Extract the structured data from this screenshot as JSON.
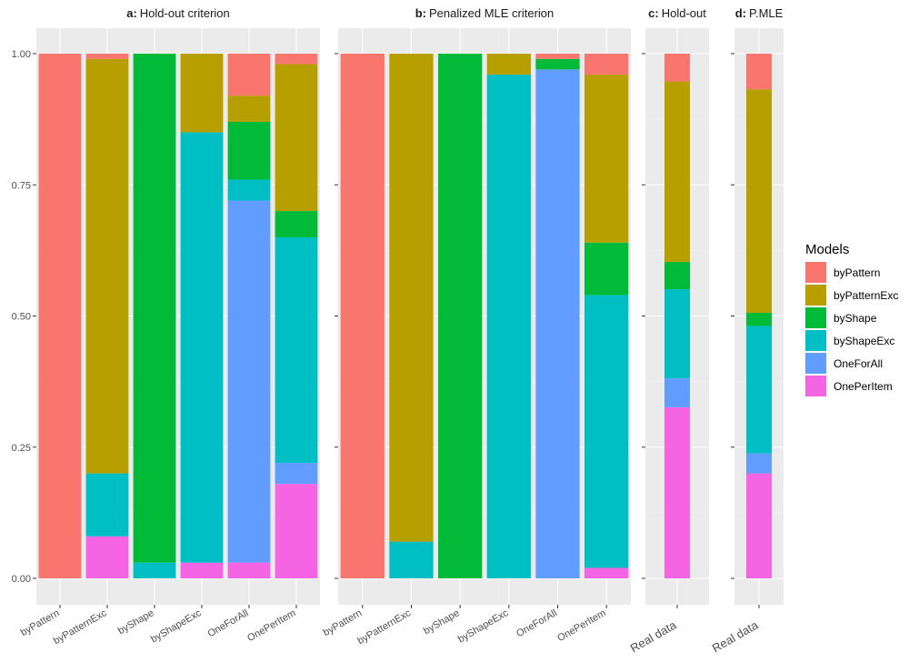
{
  "chart_data": {
    "type": "bar",
    "stacked": true,
    "y_range": [
      0,
      1
    ],
    "y_ticks": [
      "0.00",
      "0.25",
      "0.50",
      "0.75",
      "1.00"
    ],
    "model_order": [
      "OnePerItem",
      "OneForAll",
      "byShapeExc",
      "byShape",
      "byPatternExc",
      "byPattern"
    ],
    "colors": {
      "byPattern": "#F8766D",
      "byPatternExc": "#B79F00",
      "byShape": "#00BA38",
      "byShapeExc": "#00BFC4",
      "OneForAll": "#619CFF",
      "OnePerItem": "#F564E3"
    },
    "legend": {
      "title": "Models",
      "position": "right",
      "items": [
        "byPattern",
        "byPatternExc",
        "byShape",
        "byShapeExc",
        "OneForAll",
        "OnePerItem"
      ]
    },
    "panels": [
      {
        "id": "a",
        "label": "a:",
        "title": "Hold-out criterion",
        "y_axis_labels": true,
        "categories": [
          "byPattern",
          "byPatternExc",
          "byShape",
          "byShapeExc",
          "OneForAll",
          "OnePerItem"
        ],
        "bars": [
          {
            "byPattern": 1.0
          },
          {
            "OnePerItem": 0.08,
            "byShapeExc": 0.12,
            "byPatternExc": 0.79,
            "byPattern": 0.01
          },
          {
            "byShapeExc": 0.03,
            "byShape": 0.97
          },
          {
            "OnePerItem": 0.03,
            "byShapeExc": 0.82,
            "byPatternExc": 0.15
          },
          {
            "OnePerItem": 0.03,
            "OneForAll": 0.69,
            "byShapeExc": 0.04,
            "byShape": 0.11,
            "byPatternExc": 0.05,
            "byPattern": 0.08
          },
          {
            "OnePerItem": 0.18,
            "OneForAll": 0.04,
            "byShapeExc": 0.43,
            "byShape": 0.05,
            "byPatternExc": 0.28,
            "byPattern": 0.02
          }
        ]
      },
      {
        "id": "b",
        "label": "b:",
        "title": "Penalized MLE criterion",
        "y_axis_labels": false,
        "categories": [
          "byPattern",
          "byPatternExc",
          "byShape",
          "byShapeExc",
          "OneForAll",
          "OnePerItem"
        ],
        "bars": [
          {
            "byPattern": 1.0
          },
          {
            "byShapeExc": 0.07,
            "byPatternExc": 0.93
          },
          {
            "byShape": 1.0
          },
          {
            "byShapeExc": 0.96,
            "byPatternExc": 0.04
          },
          {
            "OneForAll": 0.97,
            "byShape": 0.02,
            "byPattern": 0.01
          },
          {
            "OnePerItem": 0.02,
            "byShapeExc": 0.52,
            "byShape": 0.1,
            "byPatternExc": 0.32,
            "byPattern": 0.04
          }
        ]
      },
      {
        "id": "c",
        "label": "c:",
        "title": "Hold-out",
        "y_axis_labels": false,
        "categories": [
          "Real data"
        ],
        "bars": [
          {
            "OnePerItem": 0.326,
            "OneForAll": 0.055,
            "byShapeExc": 0.17,
            "byShape": 0.052,
            "byPatternExc": 0.344,
            "byPattern": 0.053
          }
        ]
      },
      {
        "id": "d",
        "label": "d:",
        "title": "P.MLE",
        "y_axis_labels": false,
        "categories": [
          "Real data"
        ],
        "bars": [
          {
            "OnePerItem": 0.2,
            "OneForAll": 0.038,
            "byShapeExc": 0.243,
            "byShape": 0.025,
            "byPatternExc": 0.426,
            "byPattern": 0.068
          }
        ]
      }
    ]
  }
}
